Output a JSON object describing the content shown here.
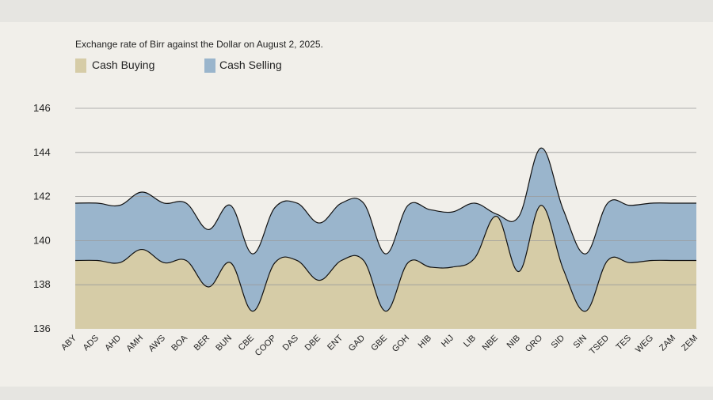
{
  "chart_data": {
    "type": "area",
    "title": "Exchange rate of Birr against the Dollar on August 2, 2025.",
    "xlabel": "",
    "ylabel": "",
    "ylim": [
      136,
      146
    ],
    "yticks": [
      136,
      138,
      140,
      142,
      144,
      146
    ],
    "grid": true,
    "legend_position": "top-left",
    "categories": [
      "ABY",
      "ADS",
      "AHD",
      "AMH",
      "AWS",
      "BOA",
      "BER",
      "BUN",
      "CBE",
      "COOP",
      "DAS",
      "DBE",
      "ENT",
      "GAD",
      "GBE",
      "GOH",
      "HIB",
      "HIJ",
      "LIB",
      "NBE",
      "NIB",
      "ORO",
      "SID",
      "SIN",
      "TSED",
      "TES",
      "WEG",
      "ZAM",
      "ZEM"
    ],
    "series": [
      {
        "name": "Cash Buying",
        "color": "#d6cca7",
        "values": [
          139.1,
          139.1,
          139.0,
          139.6,
          139.0,
          139.1,
          137.9,
          139.0,
          136.8,
          139.0,
          139.1,
          138.2,
          139.1,
          139.1,
          136.8,
          139.0,
          138.8,
          138.8,
          139.2,
          141.1,
          138.6,
          141.6,
          138.7,
          136.8,
          139.1,
          139.0,
          139.1,
          139.1,
          139.1
        ]
      },
      {
        "name": "Cash Selling",
        "color": "#9ab5cc",
        "values": [
          141.7,
          141.7,
          141.6,
          142.2,
          141.7,
          141.7,
          140.5,
          141.6,
          139.4,
          141.5,
          141.7,
          140.8,
          141.7,
          141.7,
          139.4,
          141.6,
          141.4,
          141.3,
          141.7,
          141.2,
          141.1,
          144.2,
          141.4,
          139.4,
          141.7,
          141.6,
          141.7,
          141.7,
          141.7
        ]
      }
    ]
  }
}
